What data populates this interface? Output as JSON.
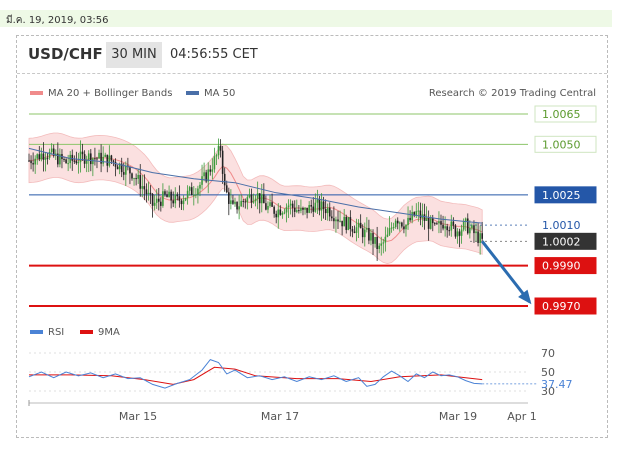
{
  "header": {
    "date": "มี.ค. 19, 2019, 03:56",
    "pair": "USD/CHF",
    "timeframe": "30 MIN",
    "time": "04:56:55 CET",
    "credit": "Research © 2019 Trading Central"
  },
  "colors": {
    "bg": "#ffffff",
    "ma20": "#f08b8b",
    "band_fill": "#fbe0e0",
    "ma50": "#4a6fa8",
    "green_level": "#8cc56a",
    "blue_level": "#2457a8",
    "red_level": "#dd1111",
    "bull": "#3a9a3a",
    "bear": "#222222",
    "rsi": "#4b83d6",
    "rsi_ma": "#dd1111",
    "arrow": "#2b6cb0",
    "current": "#333333"
  },
  "chart_data": [
    {
      "type": "line",
      "legend": [
        {
          "name": "MA 20 + Bollinger Bands",
          "icon": "pink-swatch"
        },
        {
          "name": "MA 50",
          "icon": "blue-swatch"
        }
      ],
      "ylim": [
        0.9962,
        1.0072
      ],
      "x_ticks": [
        "Mar 15",
        "Mar 17",
        "Mar 19",
        "Apr 1"
      ],
      "levels": [
        {
          "value": 1.0065,
          "label": "1.0065",
          "style": "green"
        },
        {
          "value": 1.005,
          "label": "1.0050",
          "style": "green"
        },
        {
          "value": 1.0025,
          "label": "1.0025",
          "style": "blue"
        },
        {
          "value": 1.001,
          "label": "1.0010",
          "style": "dotted"
        },
        {
          "value": 1.0002,
          "label": "1.0002",
          "style": "current"
        },
        {
          "value": 0.999,
          "label": "0.9990",
          "style": "red"
        },
        {
          "value": 0.997,
          "label": "0.9970",
          "style": "red"
        }
      ],
      "price_path": [
        [
          0,
          1.0042
        ],
        [
          8,
          1.0046
        ],
        [
          18,
          1.0041
        ],
        [
          28,
          1.0044
        ],
        [
          40,
          1.0042
        ],
        [
          50,
          1.0036
        ],
        [
          56,
          1.0028
        ],
        [
          60,
          1.002
        ],
        [
          66,
          1.0024
        ],
        [
          72,
          1.0022
        ],
        [
          78,
          1.0026
        ],
        [
          83,
          1.003
        ],
        [
          87,
          1.0036
        ],
        [
          90,
          1.0042
        ],
        [
          93,
          1.0048
        ],
        [
          95,
          1.0028
        ],
        [
          99,
          1.0018
        ],
        [
          104,
          1.0022
        ],
        [
          110,
          1.0026
        ],
        [
          115,
          1.0019
        ],
        [
          120,
          1.0017
        ],
        [
          126,
          1.002
        ],
        [
          133,
          1.0016
        ],
        [
          138,
          1.002
        ],
        [
          145,
          1.0018
        ],
        [
          152,
          1.0012
        ],
        [
          160,
          1.0008
        ],
        [
          166,
          1.0004
        ],
        [
          170,
          0.9998
        ],
        [
          174,
          1.0004
        ],
        [
          178,
          1.0014
        ],
        [
          183,
          1.001
        ],
        [
          188,
          1.0016
        ],
        [
          193,
          1.0012
        ],
        [
          197,
          1.0008
        ],
        [
          202,
          1.0012
        ],
        [
          207,
          1.0007
        ],
        [
          212,
          1.001
        ],
        [
          216,
          1.0006
        ],
        [
          220,
          1.0002
        ]
      ],
      "ma50_path": [
        [
          0,
          1.0048
        ],
        [
          20,
          1.0043
        ],
        [
          40,
          1.0041
        ],
        [
          60,
          1.0036
        ],
        [
          80,
          1.0033
        ],
        [
          100,
          1.0031
        ],
        [
          120,
          1.0026
        ],
        [
          140,
          1.0023
        ],
        [
          160,
          1.0019
        ],
        [
          180,
          1.0016
        ],
        [
          200,
          1.0013
        ],
        [
          220,
          1.0011
        ]
      ],
      "arrow": {
        "from": [
          220,
          1.0002
        ],
        "to": [
          243,
          0.9972
        ]
      }
    },
    {
      "type": "line",
      "legend": [
        {
          "name": "RSI",
          "icon": "blue-swatch"
        },
        {
          "name": "9MA",
          "icon": "red-swatch"
        }
      ],
      "ylim": [
        25,
        75
      ],
      "y_ticks": [
        30,
        50,
        70
      ],
      "current_label": "37.47",
      "rsi_path": [
        [
          0,
          45
        ],
        [
          6,
          50
        ],
        [
          12,
          44
        ],
        [
          18,
          50
        ],
        [
          24,
          46
        ],
        [
          30,
          49
        ],
        [
          36,
          44
        ],
        [
          42,
          48
        ],
        [
          48,
          43
        ],
        [
          54,
          44
        ],
        [
          60,
          37
        ],
        [
          66,
          33
        ],
        [
          72,
          38
        ],
        [
          78,
          42
        ],
        [
          84,
          52
        ],
        [
          88,
          63
        ],
        [
          92,
          60
        ],
        [
          96,
          48
        ],
        [
          100,
          52
        ],
        [
          106,
          44
        ],
        [
          112,
          46
        ],
        [
          118,
          42
        ],
        [
          124,
          45
        ],
        [
          130,
          40
        ],
        [
          136,
          45
        ],
        [
          142,
          42
        ],
        [
          148,
          46
        ],
        [
          154,
          40
        ],
        [
          160,
          44
        ],
        [
          164,
          35
        ],
        [
          168,
          37
        ],
        [
          172,
          45
        ],
        [
          176,
          51
        ],
        [
          180,
          46
        ],
        [
          184,
          40
        ],
        [
          188,
          48
        ],
        [
          192,
          44
        ],
        [
          196,
          50
        ],
        [
          200,
          46
        ],
        [
          204,
          47
        ],
        [
          208,
          45
        ],
        [
          212,
          41
        ],
        [
          216,
          38
        ],
        [
          220,
          37.47
        ]
      ],
      "ma9_path": [
        [
          0,
          47
        ],
        [
          20,
          47
        ],
        [
          40,
          46
        ],
        [
          56,
          42
        ],
        [
          70,
          37
        ],
        [
          80,
          42
        ],
        [
          90,
          55
        ],
        [
          100,
          53
        ],
        [
          110,
          46
        ],
        [
          130,
          43
        ],
        [
          150,
          43
        ],
        [
          166,
          40
        ],
        [
          180,
          45
        ],
        [
          200,
          47
        ],
        [
          212,
          44
        ],
        [
          220,
          42
        ]
      ]
    }
  ]
}
